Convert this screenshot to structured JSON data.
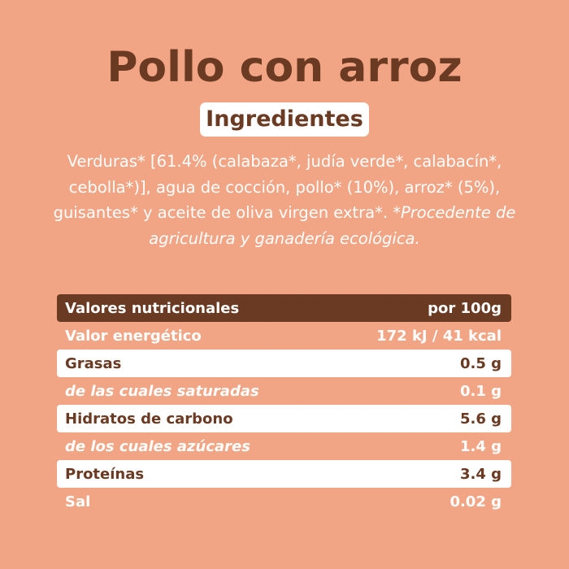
{
  "title": "Pollo con arroz",
  "ingredients_heading": "Ingredientes",
  "ingredients_text": "Verduras* [61.4% (calabaza*, judía verde*, calabacín*, cebolla*)], agua de cocción, pollo* (10%), arroz* (5%), guisantes* y aceite de oliva virgen extra*.",
  "ingredients_note": "*Procedente de agricultura y ganadería ecológica.",
  "nutrition": {
    "header_label": "Valores nutricionales",
    "header_value": "por 100g",
    "rows": [
      {
        "label": "Valor energético",
        "value": "172 kJ / 41 kcal"
      },
      {
        "label": "Grasas",
        "value": "0.5 g"
      },
      {
        "label": "de las cuales saturadas",
        "value": "0.1 g"
      },
      {
        "label": "Hidratos de carbono",
        "value": "5.6 g"
      },
      {
        "label": "de los cuales azúcares",
        "value": "1.4 g"
      },
      {
        "label": "Proteínas",
        "value": "3.4 g"
      },
      {
        "label": "Sal",
        "value": "0.02 g"
      }
    ]
  },
  "colors": {
    "background": "#F2A584",
    "brown": "#6B3A22",
    "white": "#FFFFFF"
  }
}
